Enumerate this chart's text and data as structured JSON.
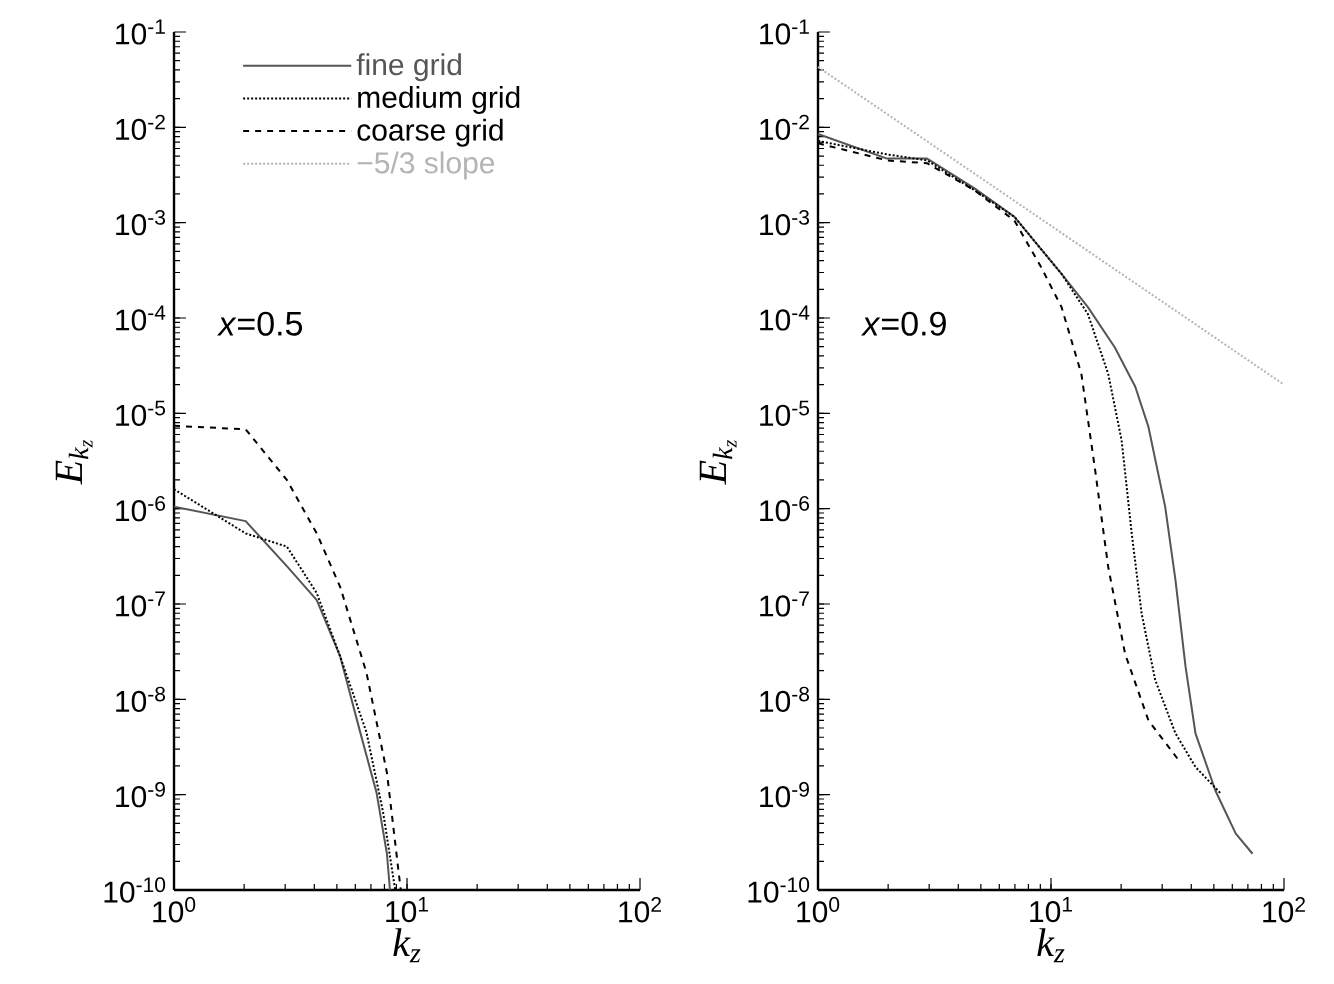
{
  "chart_data": [
    {
      "type": "line",
      "xlabel": "k_z",
      "ylabel": "E_{k_z}",
      "log": "xy",
      "xlim": [
        1,
        100
      ],
      "ylim": [
        1e-10,
        0.1
      ],
      "xticks": [
        {
          "value": 1,
          "label": "10$^{0}$"
        },
        {
          "value": 10,
          "label": "10$^{1}$"
        },
        {
          "value": 100,
          "label": "10$^{2}$"
        }
      ],
      "yticks": [
        {
          "value": 1e-10,
          "label": "10$^{-10}$"
        },
        {
          "value": 1e-09,
          "label": "10$^{-9}$"
        },
        {
          "value": 1e-08,
          "label": "10$^{-8}$"
        },
        {
          "value": 1e-07,
          "label": "10$^{-7}$"
        },
        {
          "value": 1e-06,
          "label": "10$^{-6}$"
        },
        {
          "value": 1e-05,
          "label": "10$^{-5}$"
        },
        {
          "value": 0.0001,
          "label": "10$^{-4}$"
        },
        {
          "value": 0.001,
          "label": "10$^{-3}$"
        },
        {
          "value": 0.01,
          "label": "10$^{-2}$"
        },
        {
          "value": 0.1,
          "label": "10$^{-1}$"
        }
      ],
      "legend": "top",
      "annotations": [
        "*x*=0.5"
      ],
      "series": [
        {
          "name": "fine grid",
          "color": "#555555",
          "line_style": "solid",
          "x": [
            1,
            2.03,
            3.05,
            4.1,
            5.17,
            6.3,
            7.4,
            8.2,
            8.45
          ],
          "values": [
            1.05e-06,
            7.4e-07,
            2.5e-07,
            1.1e-07,
            2.8e-08,
            4.5e-09,
            1.05e-09,
            2.4e-10,
            1e-10
          ]
        },
        {
          "name": "medium grid",
          "color": "#000000",
          "line_style": "dotted",
          "x": [
            1,
            2.03,
            3.05,
            4.1,
            5.17,
            6.7,
            7.9,
            8.9
          ],
          "values": [
            1.6e-06,
            5.5e-07,
            4e-07,
            1.3e-07,
            2.8e-08,
            4.5e-09,
            6.5e-10,
            1e-10
          ]
        },
        {
          "name": "coarse grid",
          "color": "#000000",
          "line_style": "dashed",
          "x": [
            1,
            2.03,
            3.05,
            4.1,
            5.17,
            6.7,
            8.2,
            9.4
          ],
          "values": [
            7.4e-06,
            6.8e-06,
            2e-06,
            5.5e-07,
            1.5e-07,
            1.9e-08,
            1.7e-09,
            1e-10
          ]
        }
      ]
    },
    {
      "type": "line",
      "xlabel": "k_z",
      "ylabel": "E_{k_z}",
      "log": "xy",
      "xlim": [
        1,
        100
      ],
      "ylim": [
        1e-10,
        0.1
      ],
      "xticks": [
        {
          "value": 1,
          "label": "10$^{0}$"
        },
        {
          "value": 10,
          "label": "10$^{1}$"
        },
        {
          "value": 100,
          "label": "10$^{2}$"
        }
      ],
      "yticks": [
        {
          "value": 1e-10,
          "label": "10$^{-10}$"
        },
        {
          "value": 1e-09,
          "label": "10$^{-9}$"
        },
        {
          "value": 1e-08,
          "label": "10$^{-8}$"
        },
        {
          "value": 1e-07,
          "label": "10$^{-7}$"
        },
        {
          "value": 1e-06,
          "label": "10$^{-6}$"
        },
        {
          "value": 1e-05,
          "label": "10$^{-5}$"
        },
        {
          "value": 0.0001,
          "label": "10$^{-4}$"
        },
        {
          "value": 0.001,
          "label": "10$^{-3}$"
        },
        {
          "value": 0.01,
          "label": "10$^{-2}$"
        },
        {
          "value": 0.1,
          "label": "10$^{-1}$"
        }
      ],
      "annotations": [
        "*x*=0.9"
      ],
      "series": [
        {
          "color": "#555555",
          "line_style": "solid",
          "x": [
            1,
            1.98,
            2.94,
            4.68,
            6.97,
            11.1,
            14.4,
            18.8,
            23,
            26.2,
            30.9,
            34.2,
            37.8,
            41.7,
            50.8,
            62.1,
            73.3
          ],
          "values": [
            0.0085,
            0.0047,
            0.0047,
            0.0023,
            0.00115,
            0.00029,
            0.00013,
            4.9e-05,
            1.9e-05,
            7.2e-06,
            1.05e-06,
            1.8e-07,
            2.2e-08,
            4.4e-09,
            1.1e-09,
            3.9e-10,
            2.4e-10
          ]
        },
        {
          "color": "#000000",
          "line_style": "dotted",
          "x": [
            1,
            1.98,
            2.94,
            4.68,
            6.97,
            11.1,
            14.4,
            17.6,
            20.1,
            22.2,
            24.5,
            28,
            34.2,
            41.7,
            53.7
          ],
          "values": [
            0.0072,
            0.0052,
            0.0045,
            0.0022,
            0.00115,
            0.00029,
            0.00011,
            2.6e-05,
            5.2e-06,
            5.5e-07,
            7.9e-08,
            1.6e-08,
            4.4e-09,
            1.95e-09,
            1.02e-09
          ]
        },
        {
          "color": "#000000",
          "line_style": "dashed",
          "x": [
            1,
            1.98,
            2.94,
            4.68,
            6.97,
            9.08,
            11.1,
            13.5,
            15.4,
            17.6,
            20.8,
            26.2,
            35.3
          ],
          "values": [
            0.0068,
            0.0045,
            0.0042,
            0.0022,
            0.00105,
            0.00034,
            0.00013,
            2.6e-05,
            2.75e-06,
            2.45e-07,
            3e-08,
            6e-09,
            2.3e-09
          ]
        },
        {
          "name": "−5/3 slope",
          "color": "#b4b4b4",
          "line_style": "dotted",
          "x": [
            1,
            100
          ],
          "values": [
            0.043,
            2e-05
          ]
        }
      ]
    }
  ]
}
